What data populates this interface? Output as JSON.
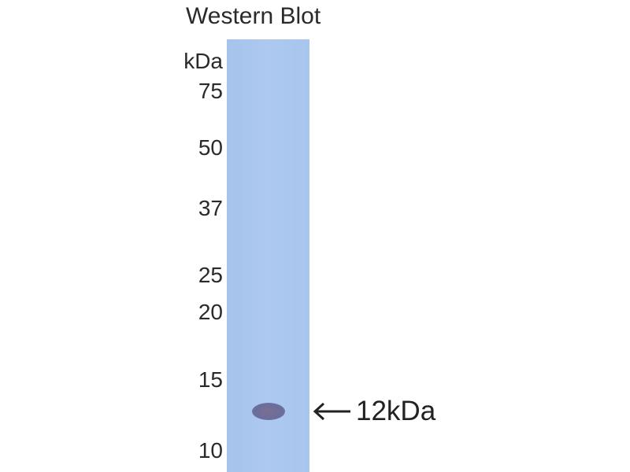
{
  "title": "Western Blot",
  "unit_label": "kDa",
  "markers": [
    "75",
    "50",
    "37",
    "25",
    "20",
    "15",
    "10"
  ],
  "band_label": "12kDa",
  "colors": {
    "membrane": "#a9c6ee",
    "band": "#6e6f9a",
    "text": "#222222"
  },
  "icons": {
    "band_pointer": "left-arrow-icon"
  }
}
